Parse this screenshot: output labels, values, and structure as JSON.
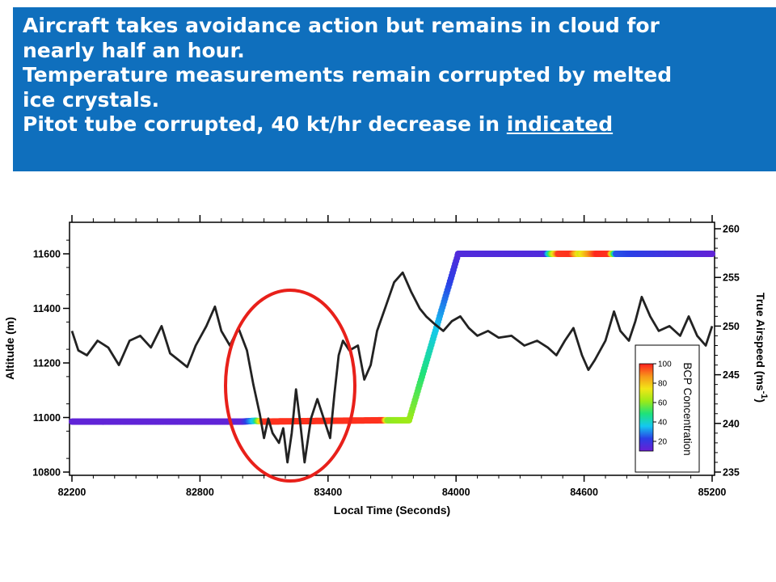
{
  "banner": {
    "line1": "Aircraft takes avoidance action but remains in cloud for",
    "line2": "nearly half an hour.",
    "line3": "Temperature measurements remain corrupted by melted",
    "line4": "ice crystals.",
    "line5_prefix": "Pitot tube corrupted, 40 kt/hr decrease in ",
    "line5_underlined": "indicated"
  },
  "colors": {
    "banner_bg": "#0f6fbd",
    "banner_text": "#ffffff",
    "airspeed_line": "#222222",
    "annotation_ellipse": "#e8201a"
  },
  "chart_data": {
    "type": "scatter",
    "xlabel": "Local Time (Seconds)",
    "ylabel_left": "Altitude (m)",
    "ylabel_right": "True Airspeed (ms",
    "ylabel_right_superscript": "-1",
    "ylabel_right_suffix": ")",
    "xlim": [
      82200,
      85200
    ],
    "ylim_left": [
      10800,
      11700
    ],
    "ylim_right": [
      235,
      261
    ],
    "x_ticks": [
      "82200",
      "82800",
      "83400",
      "84000",
      "84600",
      "85200"
    ],
    "y_left_ticks": [
      "10800",
      "11000",
      "11200",
      "11400",
      "11600"
    ],
    "y_right_ticks": [
      "235",
      "240",
      "245",
      "250",
      "255",
      "260"
    ],
    "grid": false,
    "colorbar": {
      "label": "BCP Concentration",
      "range": [
        10,
        100
      ],
      "ticks": [
        "20",
        "40",
        "60",
        "80",
        "100"
      ],
      "position": "lower-right",
      "colormap": [
        "#6a1fd4",
        "#2a3fe6",
        "#14c8f0",
        "#1ee27a",
        "#9bea18",
        "#f2e617",
        "#f7961a",
        "#ff1f1f"
      ]
    },
    "series": [
      {
        "role": "altitude",
        "axis": "left",
        "color_by": "BCP concentration",
        "points": [
          [
            82200,
            10985,
            12
          ],
          [
            83000,
            10985,
            12
          ],
          [
            83060,
            10988,
            40
          ],
          [
            83100,
            10985,
            98
          ],
          [
            83660,
            10990,
            98
          ],
          [
            83680,
            10990,
            60
          ],
          [
            83780,
            10990,
            62
          ],
          [
            84010,
            11600,
            15
          ],
          [
            84420,
            11600,
            15
          ],
          [
            84450,
            11600,
            62
          ],
          [
            84480,
            11600,
            97
          ],
          [
            84540,
            11600,
            98
          ],
          [
            84580,
            11600,
            70
          ],
          [
            84660,
            11600,
            99
          ],
          [
            84720,
            11600,
            98
          ],
          [
            84750,
            11600,
            25
          ],
          [
            85200,
            11600,
            12
          ]
        ]
      },
      {
        "role": "true airspeed",
        "axis": "right",
        "color": "#222222",
        "points": [
          [
            82200,
            249.5
          ],
          [
            82230,
            247.5
          ],
          [
            82270,
            247.0
          ],
          [
            82320,
            248.5
          ],
          [
            82370,
            247.8
          ],
          [
            82420,
            246.0
          ],
          [
            82470,
            248.5
          ],
          [
            82520,
            249.0
          ],
          [
            82570,
            247.8
          ],
          [
            82620,
            250.0
          ],
          [
            82660,
            247.2
          ],
          [
            82700,
            246.5
          ],
          [
            82740,
            245.8
          ],
          [
            82780,
            248.0
          ],
          [
            82830,
            250.0
          ],
          [
            82870,
            252.0
          ],
          [
            82900,
            249.5
          ],
          [
            82940,
            248.0
          ],
          [
            82980,
            249.8
          ],
          [
            83020,
            247.5
          ],
          [
            83050,
            244.0
          ],
          [
            83080,
            241.0
          ],
          [
            83100,
            238.5
          ],
          [
            83120,
            240.5
          ],
          [
            83140,
            239.0
          ],
          [
            83170,
            238.0
          ],
          [
            83190,
            239.5
          ],
          [
            83210,
            236.0
          ],
          [
            83230,
            239.0
          ],
          [
            83250,
            243.5
          ],
          [
            83270,
            240.0
          ],
          [
            83290,
            236.0
          ],
          [
            83320,
            240.5
          ],
          [
            83350,
            242.5
          ],
          [
            83380,
            240.5
          ],
          [
            83410,
            238.5
          ],
          [
            83430,
            243.0
          ],
          [
            83450,
            247.0
          ],
          [
            83470,
            248.5
          ],
          [
            83500,
            247.5
          ],
          [
            83540,
            248.0
          ],
          [
            83570,
            244.5
          ],
          [
            83600,
            246.0
          ],
          [
            83630,
            249.5
          ],
          [
            83670,
            252.0
          ],
          [
            83710,
            254.5
          ],
          [
            83750,
            255.5
          ],
          [
            83790,
            253.5
          ],
          [
            83830,
            251.8
          ],
          [
            83860,
            251.0
          ],
          [
            83900,
            250.2
          ],
          [
            83940,
            249.5
          ],
          [
            83980,
            250.5
          ],
          [
            84020,
            251.0
          ],
          [
            84060,
            249.8
          ],
          [
            84100,
            249.0
          ],
          [
            84150,
            249.5
          ],
          [
            84200,
            248.8
          ],
          [
            84260,
            249.0
          ],
          [
            84320,
            248.0
          ],
          [
            84380,
            248.5
          ],
          [
            84430,
            247.8
          ],
          [
            84470,
            247.0
          ],
          [
            84510,
            248.5
          ],
          [
            84550,
            249.8
          ],
          [
            84590,
            247.0
          ],
          [
            84620,
            245.5
          ],
          [
            84650,
            246.5
          ],
          [
            84700,
            248.5
          ],
          [
            84740,
            251.5
          ],
          [
            84770,
            249.5
          ],
          [
            84810,
            248.5
          ],
          [
            84840,
            250.5
          ],
          [
            84870,
            253.0
          ],
          [
            84910,
            251.0
          ],
          [
            84950,
            249.5
          ],
          [
            85000,
            250.0
          ],
          [
            85050,
            249.0
          ],
          [
            85090,
            251.0
          ],
          [
            85130,
            249.0
          ],
          [
            85170,
            248.0
          ],
          [
            85200,
            250.0
          ]
        ]
      }
    ]
  }
}
